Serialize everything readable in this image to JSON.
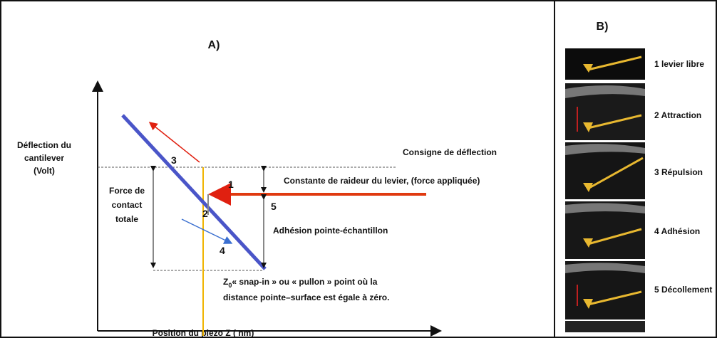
{
  "panel_a": {
    "label": "A)",
    "y_axis_label": [
      "Déflection du",
      "cantilever",
      "(Volt)"
    ],
    "x_axis_label": "Position du piezo Z ( nm)",
    "total_force_label": [
      "Force de",
      "contact",
      "totale"
    ],
    "setpoint_label": "Consigne de déflection",
    "stiffness_label": "Constante de raideur du levier, (force appliquée)",
    "adhesion_label": "Adhésion pointe-échantillon",
    "zero_note": {
      "symbol": "Z",
      "subscript": "0",
      "lines": [
        "« snap-in » ou « pullon » point où la",
        "distance pointe–surface est égale à zéro."
      ]
    },
    "steps": [
      "1",
      "2",
      "3",
      "4",
      "5"
    ]
  },
  "panel_b": {
    "label": "B)",
    "items": [
      "1 levier libre",
      "2 Attraction",
      "3 Répulsion",
      "4 Adhésion",
      "5 Décollement"
    ]
  }
}
